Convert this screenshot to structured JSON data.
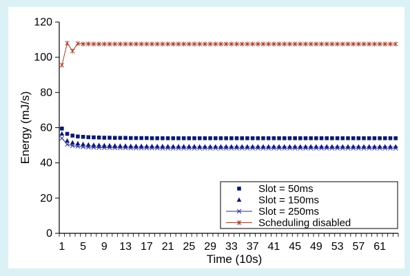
{
  "chart_data": {
    "type": "line",
    "title": "",
    "xlabel": "Time (10s)",
    "ylabel": "Energy (mJ/s)",
    "ylim": [
      0,
      120
    ],
    "yticks": [
      0,
      20,
      40,
      60,
      80,
      100,
      120
    ],
    "xlim": [
      1,
      64
    ],
    "xticks": [
      1,
      5,
      9,
      13,
      17,
      21,
      25,
      29,
      33,
      37,
      41,
      45,
      49,
      53,
      57,
      61
    ],
    "grid": false,
    "legend_position": "bottom-right",
    "series": [
      {
        "name": "Slot = 50ms",
        "color": "#0a1a6e",
        "marker": "square",
        "line": false,
        "x_start": 1,
        "values": [
          59.5,
          56.5,
          55.5,
          55,
          54.8,
          54.6,
          54.5,
          54.4,
          54.3,
          54.3,
          54.2,
          54.2,
          54.2,
          54.1,
          54.1,
          54.1,
          54.1,
          54,
          54,
          54,
          54,
          54,
          54,
          54,
          54,
          54,
          54,
          54,
          54,
          54,
          54,
          54,
          54,
          54,
          54,
          54,
          54,
          54,
          54,
          54,
          54,
          54,
          54,
          54,
          54,
          54,
          54,
          54,
          54,
          54,
          54,
          54,
          54,
          54,
          54,
          54,
          54,
          54,
          54,
          54,
          54,
          54,
          54,
          54
        ]
      },
      {
        "name": "Slot = 150ms",
        "color": "#0a1a6e",
        "marker": "triangle",
        "line": false,
        "x_start": 1,
        "values": [
          56.5,
          52.5,
          51.5,
          51,
          50.6,
          50.3,
          50.1,
          50,
          49.9,
          49.8,
          49.7,
          49.6,
          49.6,
          49.5,
          49.5,
          49.5,
          49.4,
          49.4,
          49.4,
          49.4,
          49.3,
          49.3,
          49.3,
          49.3,
          49.3,
          49.3,
          49.2,
          49.2,
          49.2,
          49.2,
          49.2,
          49.2,
          49.2,
          49.2,
          49.2,
          49.2,
          49.2,
          49.2,
          49.2,
          49.2,
          49.2,
          49.2,
          49.2,
          49.2,
          49.2,
          49.2,
          49.2,
          49.2,
          49.2,
          49.2,
          49.2,
          49.2,
          49.2,
          49.2,
          49.2,
          49.2,
          49.2,
          49.2,
          49.2,
          49.2,
          49.2,
          49.2,
          49.2,
          49.2
        ]
      },
      {
        "name": "Slot = 250ms",
        "color": "#2a2a9a",
        "marker": "x",
        "line": true,
        "x_start": 1,
        "values": [
          54,
          50.5,
          49.8,
          49.4,
          49.1,
          48.9,
          48.8,
          48.7,
          48.6,
          48.6,
          48.5,
          48.5,
          48.5,
          48.4,
          48.4,
          48.4,
          48.4,
          48.4,
          48.4,
          48.3,
          48.3,
          48.3,
          48.3,
          48.3,
          48.3,
          48.3,
          48.3,
          48.3,
          48.3,
          48.3,
          48.3,
          48.3,
          48.3,
          48.3,
          48.3,
          48.3,
          48.3,
          48.3,
          48.3,
          48.3,
          48.3,
          48.3,
          48.3,
          48.3,
          48.3,
          48.3,
          48.3,
          48.3,
          48.3,
          48.3,
          48.3,
          48.3,
          48.3,
          48.3,
          48.3,
          48.3,
          48.3,
          48.3,
          48.3,
          48.3,
          48.3,
          48.3,
          48.3,
          48.3
        ]
      },
      {
        "name": "Scheduling disabled",
        "color": "#a03a2a",
        "marker": "star",
        "line": true,
        "x_start": 1,
        "values": [
          95.5,
          108,
          103.5,
          107.8,
          107.5,
          107.6,
          107.5,
          107.5,
          107.5,
          107.5,
          107.5,
          107.5,
          107.5,
          107.5,
          107.5,
          107.5,
          107.5,
          107.5,
          107.5,
          107.5,
          107.5,
          107.5,
          107.5,
          107.5,
          107.5,
          107.5,
          107.5,
          107.5,
          107.5,
          107.5,
          107.5,
          107.5,
          107.5,
          107.5,
          107.5,
          107.5,
          107.5,
          107.5,
          107.5,
          107.5,
          107.5,
          107.5,
          107.5,
          107.5,
          107.5,
          107.5,
          107.5,
          107.5,
          107.5,
          107.5,
          107.5,
          107.5,
          107.5,
          107.5,
          107.5,
          107.5,
          107.5,
          107.5,
          107.5,
          107.5,
          107.5,
          107.5,
          107.5,
          107.5
        ]
      }
    ]
  }
}
